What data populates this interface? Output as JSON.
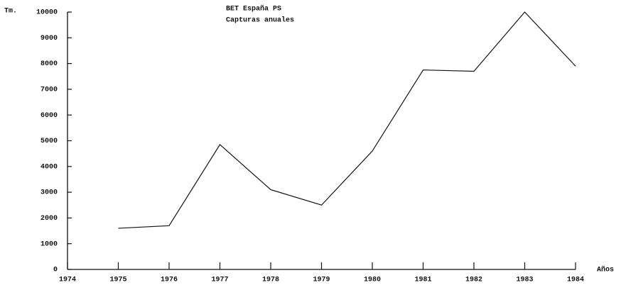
{
  "chart_data": {
    "type": "line",
    "title": "BET España PS",
    "subtitle": "Capturas anuales",
    "ylabel": "Tm.",
    "xlabel": "Años",
    "x": [
      1975,
      1976,
      1977,
      1978,
      1979,
      1980,
      1981,
      1982,
      1983,
      1984
    ],
    "series": [
      {
        "name": "Capturas",
        "color": "#111111",
        "values": [
          1600,
          1700,
          4850,
          3100,
          2500,
          4600,
          7750,
          7700,
          10000,
          7900
        ]
      }
    ],
    "xlim": [
      1974,
      1984
    ],
    "xticks": [
      1974,
      1975,
      1976,
      1977,
      1978,
      1979,
      1980,
      1981,
      1982,
      1983,
      1984
    ],
    "ylim": [
      0,
      10000
    ],
    "yticks": [
      0,
      1000,
      2000,
      3000,
      4000,
      5000,
      6000,
      7000,
      8000,
      9000,
      10000
    ],
    "grid": false
  }
}
